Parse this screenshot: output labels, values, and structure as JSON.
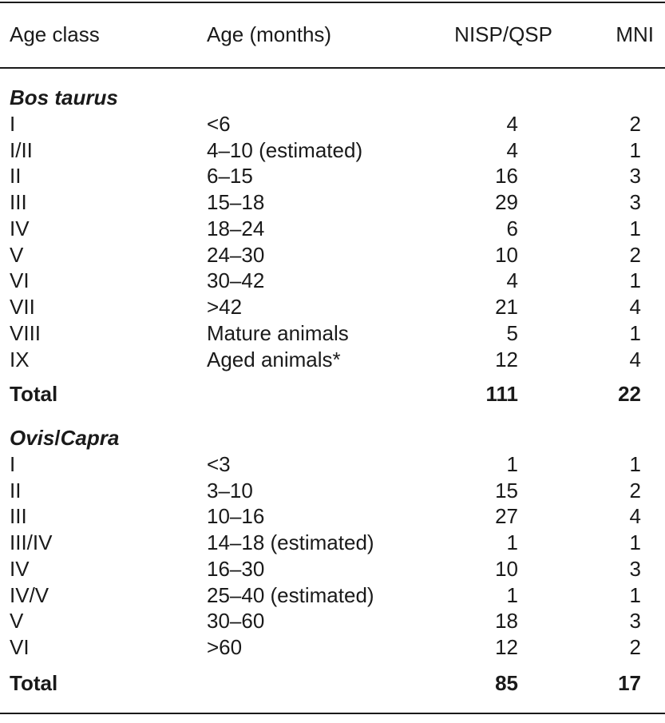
{
  "header": {
    "age_class": "Age class",
    "age_months": "Age (months)",
    "nisp": "NISP/QSP",
    "mni": "MNI"
  },
  "bos": {
    "title": "Bos taurus",
    "rows": [
      {
        "cls": "I",
        "age": "<6",
        "nisp": "4",
        "mni": "2"
      },
      {
        "cls": "I/II",
        "age": "4–10 (estimated)",
        "nisp": "4",
        "mni": "1"
      },
      {
        "cls": "II",
        "age": "6–15",
        "nisp": "16",
        "mni": "3"
      },
      {
        "cls": "III",
        "age": "15–18",
        "nisp": "29",
        "mni": "3"
      },
      {
        "cls": "IV",
        "age": "18–24",
        "nisp": "6",
        "mni": "1"
      },
      {
        "cls": "V",
        "age": "24–30",
        "nisp": "10",
        "mni": "2"
      },
      {
        "cls": "VI",
        "age": "30–42",
        "nisp": "4",
        "mni": "1"
      },
      {
        "cls": "VII",
        "age": ">42",
        "nisp": "21",
        "mni": "4"
      },
      {
        "cls": "VIII",
        "age": "Mature animals",
        "nisp": "5",
        "mni": "1"
      },
      {
        "cls": "IX",
        "age": "Aged animals*",
        "nisp": "12",
        "mni": "4"
      }
    ],
    "total": {
      "label": "Total",
      "nisp": "111",
      "mni": "22"
    }
  },
  "ovis": {
    "title_a": "Ovis",
    "title_slash": "/",
    "title_b": "Capra",
    "rows": [
      {
        "cls": "I",
        "age": "<3",
        "nisp": "1",
        "mni": "1"
      },
      {
        "cls": "II",
        "age": "3–10",
        "nisp": "15",
        "mni": "2"
      },
      {
        "cls": "III",
        "age": "10–16",
        "nisp": "27",
        "mni": "4"
      },
      {
        "cls": "III/IV",
        "age": "14–18 (estimated)",
        "nisp": "1",
        "mni": "1"
      },
      {
        "cls": "IV",
        "age": "16–30",
        "nisp": "10",
        "mni": "3"
      },
      {
        "cls": "IV/V",
        "age": "25–40 (estimated)",
        "nisp": "1",
        "mni": "1"
      },
      {
        "cls": "V",
        "age": "30–60",
        "nisp": "18",
        "mni": "3"
      },
      {
        "cls": "VI",
        "age": ">60",
        "nisp": "12",
        "mni": "2"
      }
    ],
    "total": {
      "label": "Total",
      "nisp": "85",
      "mni": "17"
    }
  }
}
